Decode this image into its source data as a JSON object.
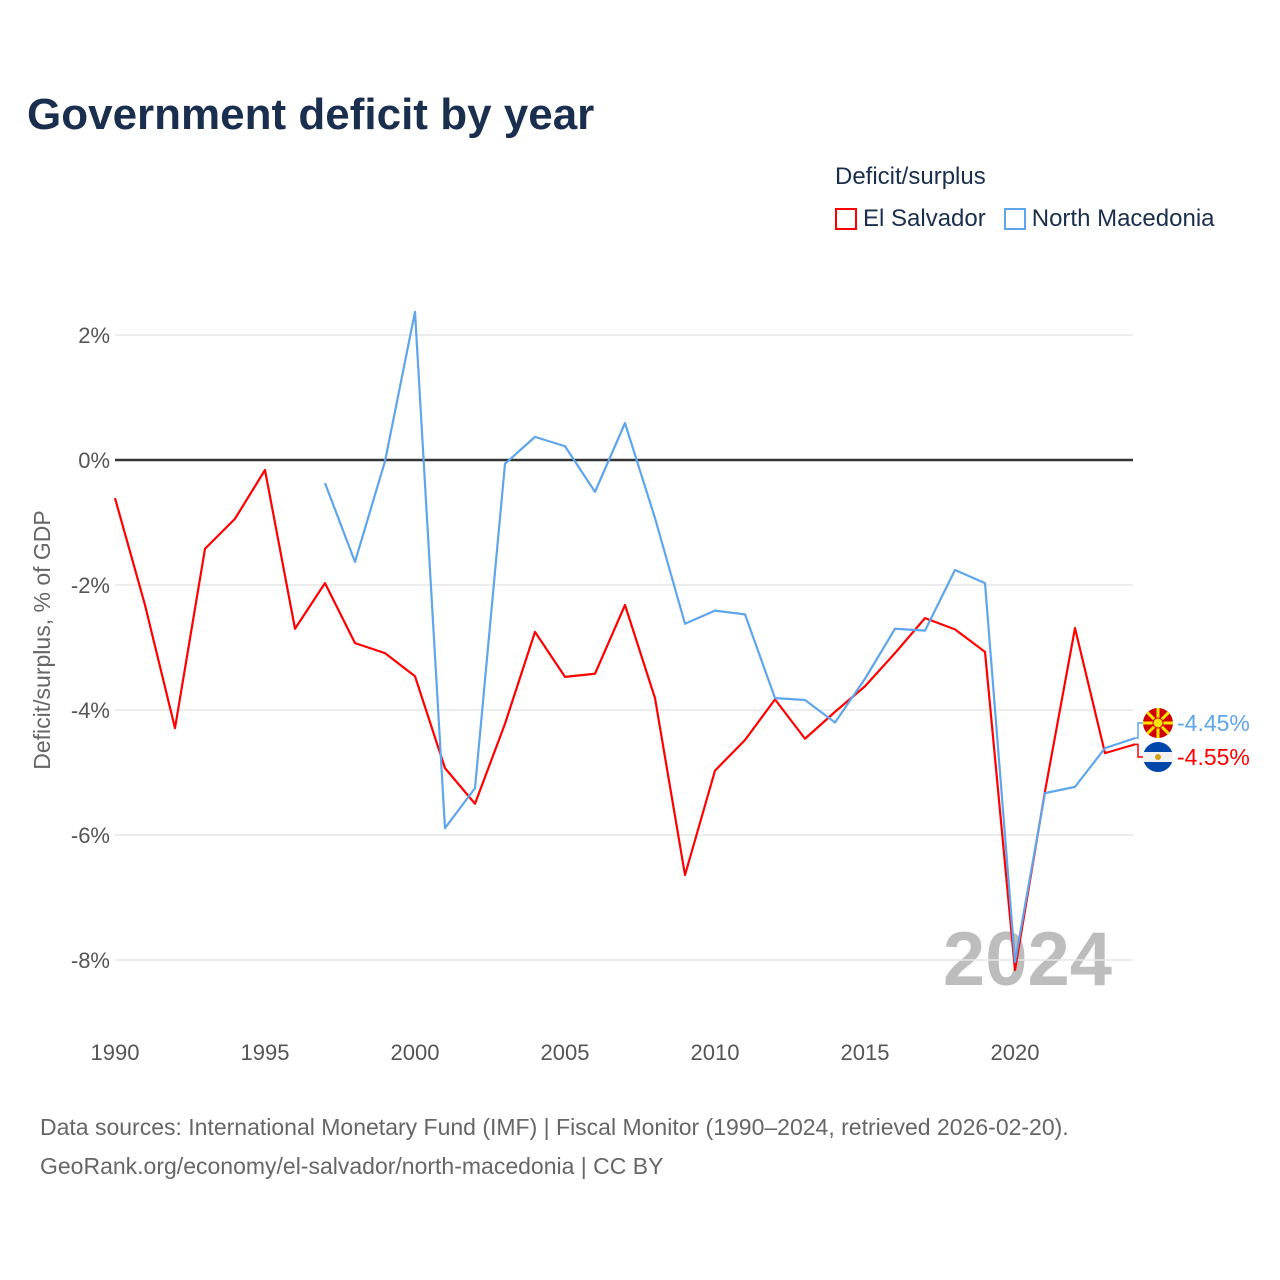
{
  "title": "Government deficit by year",
  "legend": {
    "title": "Deficit/surplus",
    "items": [
      {
        "name": "El Salvador",
        "color": "#ff0000"
      },
      {
        "name": "North Macedonia",
        "color": "#5ea5ec"
      }
    ]
  },
  "source": {
    "line1": "Data sources: International Monetary Fund (IMF) | Fiscal Monitor (1990–2024, retrieved 2026-02-20).",
    "line2": "GeoRank.org/economy/el-salvador/north-macedonia | CC BY"
  },
  "year_watermark": "2024",
  "chart_data": {
    "type": "line",
    "title": "Government deficit by year",
    "xlabel": "",
    "ylabel": "Deficit/surplus, % of GDP",
    "xlim": [
      1990,
      2024
    ],
    "ylim": [
      -9,
      2.8
    ],
    "x_ticks": [
      "1990",
      "1995",
      "2000",
      "2005",
      "2010",
      "2015",
      "2020"
    ],
    "y_ticks": [
      {
        "v": 2,
        "label": "2%"
      },
      {
        "v": 0,
        "label": "0%"
      },
      {
        "v": -2,
        "label": "-2%"
      },
      {
        "v": -4,
        "label": "-4%"
      },
      {
        "v": -6,
        "label": "-6%"
      },
      {
        "v": -8,
        "label": "-8%"
      }
    ],
    "grid": true,
    "legend_position": "top-right",
    "series": [
      {
        "name": "El Salvador",
        "color": "#ff0000",
        "end_label": "-4.55%",
        "x": [
          1990,
          1991,
          1992,
          1993,
          1994,
          1995,
          1996,
          1997,
          1998,
          1999,
          2000,
          2001,
          2002,
          2003,
          2004,
          2005,
          2006,
          2007,
          2008,
          2009,
          2010,
          2011,
          2012,
          2013,
          2014,
          2015,
          2016,
          2017,
          2018,
          2019,
          2020,
          2021,
          2022,
          2023,
          2024
        ],
        "values": [
          -0.61,
          -2.32,
          -4.29,
          -1.42,
          -0.94,
          -0.16,
          -2.7,
          -1.97,
          -2.93,
          -3.09,
          -3.46,
          -4.93,
          -5.5,
          -4.22,
          -2.75,
          -3.47,
          -3.42,
          -2.32,
          -3.81,
          -6.64,
          -4.97,
          -4.48,
          -3.83,
          -4.46,
          -4.03,
          -3.62,
          -3.09,
          -2.53,
          -2.71,
          -3.07,
          -8.16,
          -5.3,
          -2.69,
          -4.69,
          -4.55
        ]
      },
      {
        "name": "North Macedonia",
        "color": "#5ea5ec",
        "end_label": "-4.45%",
        "x": [
          1997,
          1998,
          1999,
          2000,
          2001,
          2002,
          2003,
          2004,
          2005,
          2006,
          2007,
          2008,
          2009,
          2010,
          2011,
          2012,
          2013,
          2014,
          2015,
          2016,
          2017,
          2018,
          2019,
          2020,
          2021,
          2022,
          2023,
          2024
        ],
        "values": [
          -0.37,
          -1.63,
          -0.02,
          2.37,
          -5.89,
          -5.25,
          -0.06,
          0.37,
          0.22,
          -0.51,
          0.59,
          -0.93,
          -2.62,
          -2.41,
          -2.47,
          -3.81,
          -3.84,
          -4.2,
          -3.5,
          -2.7,
          -2.73,
          -1.76,
          -1.97,
          -8.03,
          -5.33,
          -5.23,
          -4.61,
          -4.45
        ]
      }
    ]
  }
}
